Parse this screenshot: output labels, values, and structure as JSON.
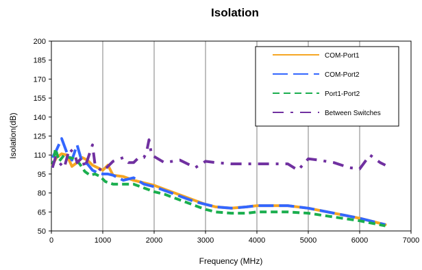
{
  "chart_data": {
    "type": "line",
    "title": "Isolation",
    "xlabel": "Frequency (MHz)",
    "ylabel": "Isolation(dB)",
    "xlim": [
      0,
      7000
    ],
    "ylim": [
      50,
      200
    ],
    "xticks": [
      "0",
      "1000",
      "2000",
      "3000",
      "4000",
      "5000",
      "6000",
      "7000"
    ],
    "yticks": [
      "50",
      "65",
      "80",
      "95",
      "110",
      "125",
      "140",
      "155",
      "170",
      "185",
      "200"
    ],
    "x_grid": true,
    "y_grid": false,
    "legend_position": "top-right",
    "series": [
      {
        "name": "COM-Port1",
        "color": "#F5A623",
        "dash": "solid",
        "x": [
          20,
          100,
          200,
          300,
          400,
          500,
          600,
          700,
          800,
          900,
          1000,
          1100,
          1200,
          1400,
          1600,
          1800,
          2000,
          2200,
          2400,
          2600,
          2800,
          3000,
          3200,
          3500,
          3800,
          4000,
          4300,
          4600,
          5000,
          5500,
          6000,
          6500
        ],
        "y": [
          102,
          108,
          111,
          110,
          101,
          104,
          108,
          106,
          102,
          100,
          98,
          102,
          94,
          93,
          90,
          88,
          86,
          83,
          80,
          77,
          74,
          71,
          69,
          68,
          69,
          70,
          70,
          70,
          68,
          64,
          60,
          55
        ]
      },
      {
        "name": "COM-Port2",
        "color": "#3366FF",
        "dash": "long-dash",
        "x": [
          20,
          100,
          200,
          300,
          400,
          500,
          600,
          700,
          800,
          900,
          1000,
          1100,
          1200,
          1400,
          1600,
          1800,
          2000,
          2200,
          2400,
          2600,
          2800,
          3000,
          3200,
          3500,
          3800,
          4000,
          4300,
          4600,
          5000,
          5500,
          6000,
          6500
        ],
        "y": [
          108,
          114,
          123,
          112,
          106,
          118,
          104,
          103,
          98,
          96,
          95,
          95,
          94,
          90,
          92,
          87,
          85,
          82,
          79,
          76,
          73,
          71,
          69,
          68,
          69,
          70,
          70,
          70,
          68,
          64,
          60,
          55
        ]
      },
      {
        "name": "Port1-Port2",
        "color": "#1AAE4E",
        "dash": "short-dash",
        "x": [
          20,
          80,
          150,
          250,
          350,
          450,
          550,
          650,
          750,
          850,
          950,
          1050,
          1200,
          1400,
          1600,
          1800,
          2000,
          2200,
          2400,
          2600,
          2800,
          3000,
          3200,
          3500,
          3800,
          4000,
          4300,
          4600,
          5000,
          5500,
          6000,
          6500
        ],
        "y": [
          100,
          115,
          105,
          110,
          108,
          107,
          103,
          97,
          94,
          95,
          93,
          89,
          87,
          87,
          87,
          84,
          81,
          79,
          76,
          73,
          70,
          67,
          65,
          64,
          64,
          65,
          65,
          65,
          64,
          61,
          58,
          54
        ]
      },
      {
        "name": "Between Switches",
        "color": "#7030A0",
        "dash": "dash-dot",
        "x": [
          20,
          80,
          150,
          250,
          350,
          450,
          500,
          600,
          650,
          800,
          850,
          900,
          1000,
          1200,
          1400,
          1500,
          1600,
          1700,
          1800,
          1850,
          1900,
          1950,
          2200,
          2500,
          2800,
          3000,
          3200,
          3500,
          3800,
          4000,
          4300,
          4600,
          4800,
          5000,
          5200,
          5500,
          5800,
          6000,
          6200,
          6400,
          6500
        ],
        "y": [
          100,
          108,
          104,
          100,
          115,
          111,
          104,
          108,
          100,
          118,
          102,
          100,
          97,
          105,
          108,
          104,
          104,
          108,
          108,
          112,
          122,
          110,
          104,
          106,
          100,
          105,
          104,
          103,
          103,
          103,
          103,
          103,
          98,
          107,
          106,
          104,
          100,
          99,
          110,
          104,
          102
        ]
      }
    ]
  }
}
